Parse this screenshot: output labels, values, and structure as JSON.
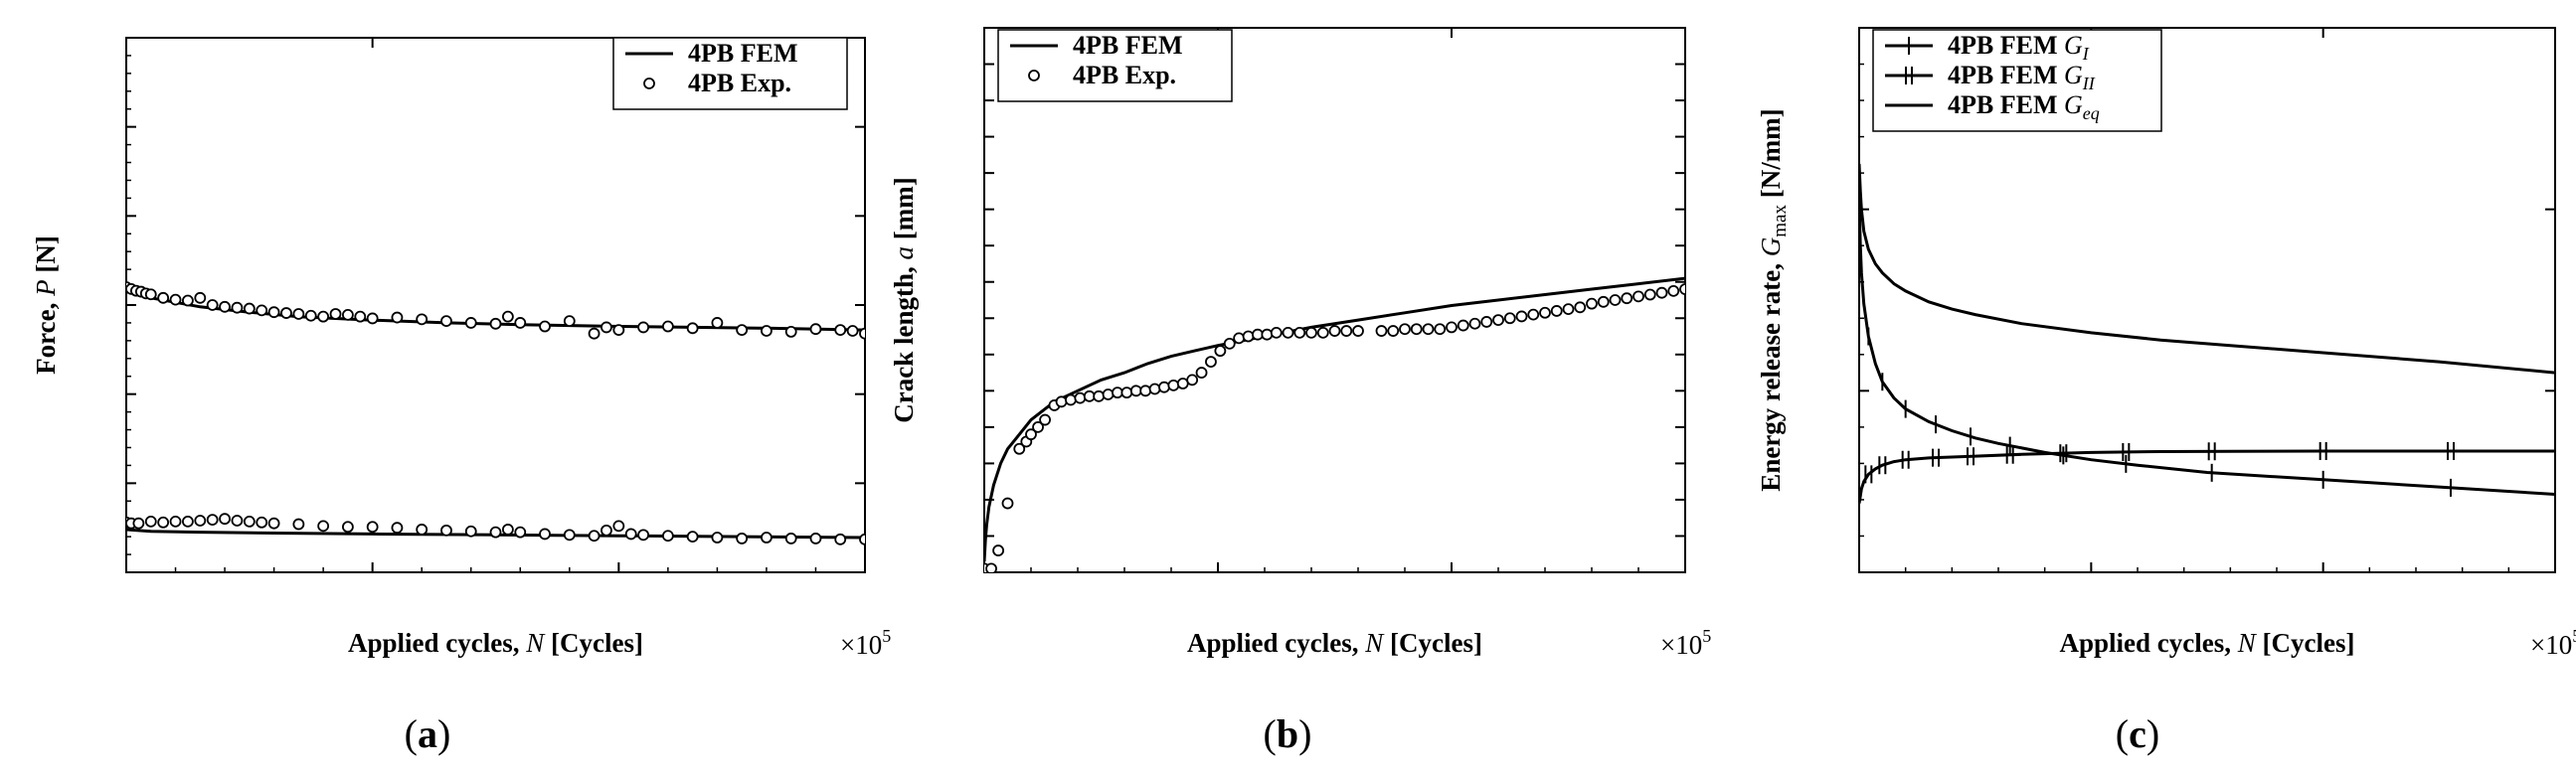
{
  "chart_data": [
    {
      "type": "line",
      "caption": "(a)",
      "caption_letter": "a",
      "xlabel": "Applied cycles, N [Cycles]",
      "xlabel_prefix": "Applied cycles, ",
      "xlabel_var": "N",
      "xlabel_suffix": " [Cycles]",
      "ylabel": "Force, P [N]",
      "ylabel_prefix": "Force, ",
      "ylabel_var": "P",
      "ylabel_suffix": " [N]",
      "x_multiplier": "×10⁵",
      "x_multiplier_base": "×10",
      "x_multiplier_exp": "5",
      "xlim": [
        0,
        3
      ],
      "ylim": [
        0,
        600
      ],
      "xticks": [
        "0",
        "1",
        "2",
        "3"
      ],
      "yticks": [
        "0",
        "100",
        "200",
        "300",
        "400",
        "500",
        "600"
      ],
      "legend_position": "top-right",
      "series": [
        {
          "name": "4PB FEM",
          "style": "line",
          "x": [
            0,
            0.02,
            0.05,
            0.1,
            0.2,
            0.3,
            0.5,
            0.7,
            1.0,
            1.3,
            1.6,
            2.0,
            2.3,
            2.6,
            3.0
          ],
          "y": [
            325,
            318,
            312,
            308,
            303,
            298,
            292,
            287,
            283,
            280,
            278,
            276,
            275,
            274,
            272
          ]
        },
        {
          "name": "",
          "style": "line",
          "x": [
            0,
            0.05,
            0.1,
            0.3,
            0.6,
            1.0,
            1.5,
            2.0,
            2.5,
            3.0
          ],
          "y": [
            48,
            47,
            46,
            45,
            44,
            43,
            42,
            41,
            40,
            39
          ]
        },
        {
          "name": "4PB Exp.",
          "style": "markers",
          "x": [
            0.0,
            0.02,
            0.04,
            0.06,
            0.08,
            0.1,
            0.15,
            0.2,
            0.25,
            0.3,
            0.35,
            0.4,
            0.45,
            0.5,
            0.55,
            0.6,
            0.65,
            0.7,
            0.75,
            0.8,
            0.85,
            0.9,
            0.95,
            1.0,
            1.1,
            1.2,
            1.3,
            1.4,
            1.5,
            1.55,
            1.6,
            1.7,
            1.8,
            1.9,
            1.95,
            2.0,
            2.1,
            2.2,
            2.3,
            2.4,
            2.5,
            2.6,
            2.7,
            2.8,
            2.9,
            2.95,
            3.0
          ],
          "y": [
            320,
            318,
            316,
            315,
            313,
            312,
            308,
            306,
            305,
            308,
            300,
            298,
            297,
            296,
            294,
            292,
            291,
            290,
            288,
            287,
            290,
            289,
            287,
            285,
            286,
            284,
            282,
            280,
            279,
            287,
            280,
            276,
            282,
            268,
            275,
            272,
            275,
            276,
            274,
            280,
            272,
            271,
            270,
            273,
            272,
            271,
            268
          ]
        },
        {
          "name": "",
          "style": "markers",
          "x": [
            0.0,
            0.02,
            0.05,
            0.1,
            0.15,
            0.2,
            0.25,
            0.3,
            0.35,
            0.4,
            0.45,
            0.5,
            0.55,
            0.6,
            0.7,
            0.8,
            0.9,
            1.0,
            1.1,
            1.2,
            1.3,
            1.4,
            1.5,
            1.55,
            1.6,
            1.7,
            1.8,
            1.9,
            1.95,
            2.0,
            2.05,
            2.1,
            2.2,
            2.3,
            2.4,
            2.5,
            2.6,
            2.7,
            2.8,
            2.9,
            3.0
          ],
          "y": [
            56,
            55,
            55,
            57,
            56,
            57,
            57,
            58,
            59,
            60,
            58,
            57,
            56,
            55,
            54,
            52,
            51,
            51,
            50,
            48,
            47,
            46,
            45,
            48,
            45,
            43,
            42,
            41,
            47,
            52,
            43,
            42,
            41,
            40,
            39,
            38,
            39,
            38,
            38,
            37,
            37
          ]
        }
      ]
    },
    {
      "type": "line",
      "caption": "(b)",
      "caption_letter": "b",
      "xlabel": "Applied cycles, N [Cycles]",
      "xlabel_prefix": "Applied cycles, ",
      "xlabel_var": "N",
      "xlabel_suffix": " [Cycles]",
      "ylabel": "Crack length, a [mm]",
      "ylabel_prefix": "Crack length, ",
      "ylabel_var": "a",
      "ylabel_suffix": " [mm]",
      "x_multiplier": "×10⁵",
      "x_multiplier_base": "×10",
      "x_multiplier_exp": "5",
      "xlim": [
        0,
        3
      ],
      "ylim": [
        0,
        15
      ],
      "xticks": [
        "0",
        "1",
        "2",
        "3"
      ],
      "yticks": [
        "0",
        "1",
        "2",
        "3",
        "4",
        "5",
        "6",
        "7",
        "8",
        "9",
        "10",
        "11",
        "12",
        "13",
        "14",
        "15"
      ],
      "legend_position": "top-left",
      "series": [
        {
          "name": "4PB FEM",
          "style": "line",
          "x": [
            0,
            0.005,
            0.01,
            0.02,
            0.04,
            0.07,
            0.1,
            0.15,
            0.2,
            0.3,
            0.4,
            0.5,
            0.6,
            0.7,
            0.8,
            0.9,
            1.0,
            1.2,
            1.4,
            1.6,
            1.8,
            2.0,
            2.2,
            2.4,
            2.6,
            2.8,
            3.0
          ],
          "y": [
            0.3,
            0.9,
            1.3,
            1.8,
            2.4,
            3.0,
            3.4,
            3.8,
            4.2,
            4.7,
            5.0,
            5.3,
            5.5,
            5.75,
            5.95,
            6.1,
            6.25,
            6.5,
            6.75,
            6.95,
            7.15,
            7.35,
            7.5,
            7.65,
            7.8,
            7.95,
            8.1
          ]
        },
        {
          "name": "4PB Exp.",
          "style": "markers",
          "x": [
            0.0,
            0.03,
            0.06,
            0.1,
            0.15,
            0.18,
            0.2,
            0.23,
            0.26,
            0.3,
            0.33,
            0.37,
            0.41,
            0.45,
            0.49,
            0.53,
            0.57,
            0.61,
            0.65,
            0.69,
            0.73,
            0.77,
            0.81,
            0.85,
            0.89,
            0.93,
            0.97,
            1.01,
            1.05,
            1.09,
            1.13,
            1.17,
            1.21,
            1.25,
            1.3,
            1.35,
            1.4,
            1.45,
            1.5,
            1.55,
            1.6,
            1.7,
            1.75,
            1.8,
            1.85,
            1.9,
            1.95,
            2.0,
            2.05,
            2.1,
            2.15,
            2.2,
            2.25,
            2.3,
            2.35,
            2.4,
            2.45,
            2.5,
            2.55,
            2.6,
            2.65,
            2.7,
            2.75,
            2.8,
            2.85,
            2.9,
            2.95,
            3.0
          ],
          "y": [
            0.1,
            0.1,
            0.6,
            1.9,
            3.4,
            3.6,
            3.8,
            4.0,
            4.2,
            4.6,
            4.7,
            4.75,
            4.8,
            4.85,
            4.85,
            4.9,
            4.95,
            4.95,
            5.0,
            5.0,
            5.05,
            5.1,
            5.15,
            5.2,
            5.3,
            5.5,
            5.8,
            6.1,
            6.3,
            6.45,
            6.5,
            6.55,
            6.55,
            6.6,
            6.6,
            6.6,
            6.6,
            6.6,
            6.65,
            6.65,
            6.65,
            6.65,
            6.65,
            6.7,
            6.7,
            6.7,
            6.7,
            6.75,
            6.8,
            6.85,
            6.9,
            6.95,
            7.0,
            7.05,
            7.1,
            7.15,
            7.2,
            7.25,
            7.3,
            7.4,
            7.45,
            7.5,
            7.55,
            7.6,
            7.65,
            7.7,
            7.75,
            7.8
          ]
        }
      ]
    },
    {
      "type": "line",
      "caption": "(c)",
      "caption_letter": "c",
      "xlabel": "Applied cycles, N [Cycles]",
      "xlabel_prefix": "Applied cycles, ",
      "xlabel_var": "N",
      "xlabel_suffix": " [Cycles]",
      "ylabel": "Energy release rate, Gmax [N/mm]",
      "ylabel_prefix": "Energy release rate, ",
      "ylabel_var": "G",
      "ylabel_sub": "max",
      "ylabel_suffix": " [N/mm]",
      "x_multiplier": "×10⁵",
      "x_multiplier_base": "×10",
      "x_multiplier_exp": "5",
      "xlim": [
        0,
        3
      ],
      "ylim": [
        0,
        0.3
      ],
      "xticks": [
        "0",
        "1",
        "2",
        "3"
      ],
      "yticks": [
        "0.0",
        "0.1",
        "0.2",
        "0.3"
      ],
      "legend_position": "top-left",
      "series": [
        {
          "name": "4PB FEM GI",
          "label_text": "4PB FEM ",
          "label_var": "G",
          "label_sub": "I",
          "style": "line-tick",
          "x": [
            0,
            0.005,
            0.01,
            0.02,
            0.04,
            0.07,
            0.1,
            0.15,
            0.2,
            0.3,
            0.4,
            0.5,
            0.6,
            0.8,
            1.0,
            1.2,
            1.5,
            2.0,
            2.5,
            3.0
          ],
          "y": [
            0.205,
            0.18,
            0.165,
            0.148,
            0.13,
            0.115,
            0.105,
            0.096,
            0.09,
            0.083,
            0.078,
            0.074,
            0.071,
            0.066,
            0.062,
            0.059,
            0.055,
            0.051,
            0.047,
            0.043
          ],
          "mark_x": [
            0.04,
            0.1,
            0.2,
            0.33,
            0.48,
            0.65,
            0.88,
            1.15,
            1.52,
            2.0,
            2.55
          ]
        },
        {
          "name": "4PB FEM GII",
          "label_text": "4PB FEM ",
          "label_var": "G",
          "label_sub": "II",
          "style": "line-doubletick",
          "x": [
            0,
            0.005,
            0.01,
            0.02,
            0.04,
            0.07,
            0.1,
            0.15,
            0.2,
            0.3,
            0.4,
            0.5,
            0.7,
            1.0,
            1.3,
            1.6,
            2.0,
            2.5,
            3.0
          ],
          "y": [
            0.038,
            0.042,
            0.046,
            0.05,
            0.054,
            0.057,
            0.059,
            0.061,
            0.062,
            0.063,
            0.0635,
            0.064,
            0.065,
            0.066,
            0.0665,
            0.0667,
            0.0668,
            0.0668,
            0.0668
          ],
          "mark_x": [
            0.04,
            0.1,
            0.2,
            0.33,
            0.48,
            0.65,
            0.88,
            1.15,
            1.52,
            2.0,
            2.55
          ]
        },
        {
          "name": "4PB FEM Geq",
          "label_text": "4PB FEM ",
          "label_var": "G",
          "label_sub": "eq",
          "style": "line",
          "x": [
            0,
            0.005,
            0.01,
            0.02,
            0.04,
            0.07,
            0.1,
            0.15,
            0.2,
            0.3,
            0.4,
            0.5,
            0.7,
            1.0,
            1.3,
            1.6,
            2.0,
            2.5,
            3.0
          ],
          "y": [
            0.225,
            0.21,
            0.2,
            0.188,
            0.178,
            0.17,
            0.165,
            0.159,
            0.155,
            0.149,
            0.145,
            0.142,
            0.137,
            0.132,
            0.128,
            0.125,
            0.121,
            0.116,
            0.11
          ]
        }
      ]
    }
  ]
}
